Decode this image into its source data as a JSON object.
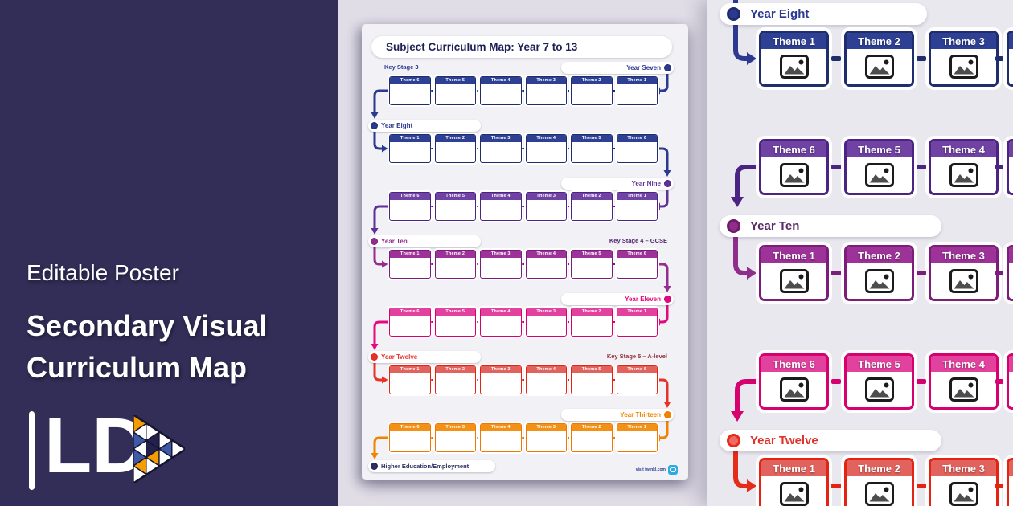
{
  "left_panel": {
    "eyebrow": "Editable Poster",
    "title_lines": [
      "Secondary Visual",
      "Curriculum Map"
    ],
    "logo_text": "LD",
    "bg_color": "#332e57",
    "logo_colors": {
      "orange": "#f59c00",
      "blue": "#3d59a8",
      "navy": "#23204d",
      "white": "#ffffff"
    }
  },
  "poster": {
    "title": "Subject Curriculum Map: Year 7 to 13",
    "rows": [
      {
        "year": "Year Seven",
        "pill_side": "right",
        "stage": "Key Stage 3",
        "stage_side": "left",
        "stage_color": "#2b3990",
        "color": "#2b3990",
        "border": "#1f2d6d",
        "header": "#2e4093",
        "themes": [
          "Theme 6",
          "Theme 5",
          "Theme 4",
          "Theme 3",
          "Theme 2",
          "Theme 1"
        ]
      },
      {
        "year": "Year Eight",
        "pill_side": "left",
        "color": "#2b3990",
        "border": "#1f2d6d",
        "header": "#2e4093",
        "themes": [
          "Theme 1",
          "Theme 2",
          "Theme 3",
          "Theme 4",
          "Theme 5",
          "Theme 6"
        ]
      },
      {
        "year": "Year Nine",
        "pill_side": "right",
        "color": "#5f3198",
        "border": "#4b2483",
        "header": "#6f42a3",
        "themes": [
          "Theme 6",
          "Theme 5",
          "Theme 4",
          "Theme 3",
          "Theme 2",
          "Theme 1"
        ]
      },
      {
        "year": "Year Ten",
        "pill_side": "left",
        "stage": "Key Stage 4 – GCSE",
        "stage_side": "right",
        "stage_color": "#53266f",
        "color": "#952d90",
        "border": "#7c1d79",
        "header": "#9d3298",
        "themes": [
          "Theme 1",
          "Theme 2",
          "Theme 3",
          "Theme 4",
          "Theme 5",
          "Theme 6"
        ]
      },
      {
        "year": "Year Eleven",
        "pill_side": "right",
        "color": "#e5097f",
        "border": "#d6006f",
        "header": "#e2429e",
        "themes": [
          "Theme 6",
          "Theme 5",
          "Theme 4",
          "Theme 3",
          "Theme 2",
          "Theme 1"
        ]
      },
      {
        "year": "Year Twelve",
        "pill_side": "left",
        "stage": "Key Stage 5 – A-level",
        "stage_side": "right",
        "stage_color": "#8f2f38",
        "color": "#e63229",
        "border": "#e42313",
        "header": "#e2625e",
        "themes": [
          "Theme 1",
          "Theme 2",
          "Theme 3",
          "Theme 4",
          "Theme 5",
          "Theme 6"
        ]
      },
      {
        "year": "Year Thirteen",
        "pill_side": "right",
        "color": "#f08300",
        "border": "#ee7802",
        "header": "#f39016",
        "themes": [
          "Theme 6",
          "Theme 5",
          "Theme 4",
          "Theme 3",
          "Theme 2",
          "Theme 1"
        ]
      }
    ],
    "end_pill": {
      "label": "Higher Education/Employment",
      "color": "#2d2f63"
    },
    "footer": {
      "text": "visit twinkl.com",
      "logo_icon": "twinkl-logo",
      "logo_color": "#29abe2"
    }
  },
  "zoom_panel": {
    "blocks": [
      {
        "type": "year",
        "label": "Year Eight",
        "dot_fill": "#2b3990",
        "dot_ring": "#1f2d6d",
        "text_color": "#2b3990"
      },
      {
        "type": "themes",
        "themes": [
          "Theme 1",
          "Theme 2",
          "Theme 3"
        ],
        "border": "#1f2d6d",
        "header": "#2e4093"
      },
      {
        "type": "themes",
        "themes": [
          "Theme 6",
          "Theme 5",
          "Theme 4"
        ],
        "border": "#4b2483",
        "header": "#6f42a3"
      },
      {
        "type": "year",
        "label": "Year Ten",
        "dot_fill": "#8f2d8a",
        "dot_ring": "#6d1b6b",
        "text_color": "#5c2b66"
      },
      {
        "type": "themes",
        "themes": [
          "Theme 1",
          "Theme 2",
          "Theme 3"
        ],
        "border": "#7c1d79",
        "header": "#9d3298"
      },
      {
        "type": "themes",
        "themes": [
          "Theme 6",
          "Theme 5",
          "Theme 4"
        ],
        "border": "#d6006f",
        "header": "#e2429e"
      },
      {
        "type": "year",
        "label": "Year Twelve",
        "dot_fill": "#ef6a64",
        "dot_ring": "#e52c1a",
        "text_color": "#e0312a"
      },
      {
        "type": "themes",
        "themes": [
          "Theme 1",
          "Theme 2",
          "Theme 3"
        ],
        "border": "#e42313",
        "header": "#e2625e"
      }
    ]
  }
}
